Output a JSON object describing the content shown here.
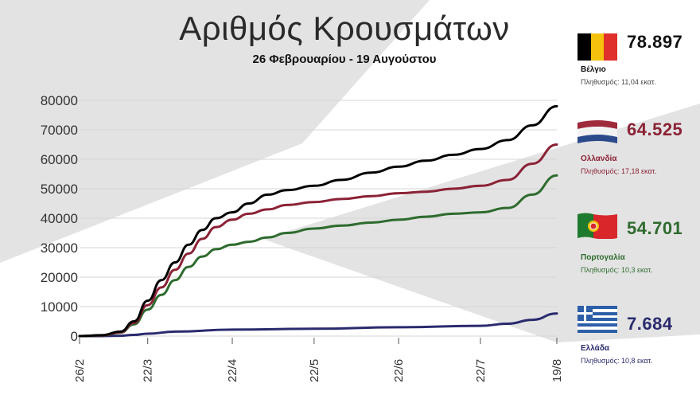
{
  "header": {
    "title": "Αριθμός Κρουσμάτων",
    "subtitle": "26 Φεβρουαρίου - 19 Αυγούστου"
  },
  "legend": [
    {
      "country": "Βέλγιο",
      "total": "78.897",
      "population": "Πληθυσμός: 11,04 εκατ.",
      "color": "#000000",
      "value_color": "#111111",
      "country_color": "#111111",
      "pop_color": "#444444",
      "icon": "belgium-flag-icon"
    },
    {
      "country": "Ολλανδία",
      "total": "64.525",
      "population": "Πληθυσμός: 17,18 εκατ.",
      "color": "#8b2235",
      "value_color": "#8b2235",
      "country_color": "#8b2235",
      "pop_color": "#8b2235",
      "icon": "netherlands-flag-icon"
    },
    {
      "country": "Πορτογαλία",
      "total": "54.701",
      "population": "Πληθυσμός: 10,3 εκατ.",
      "color": "#2e6b2e",
      "value_color": "#2e6b2e",
      "country_color": "#2e6b2e",
      "pop_color": "#2e6b2e",
      "icon": "portugal-flag-icon"
    },
    {
      "country": "Ελλάδα",
      "total": "7.684",
      "population": "Πληθυσμός: 10,8 εκατ.",
      "color": "#2a2a6e",
      "value_color": "#2a2a6e",
      "country_color": "#2a2a6e",
      "pop_color": "#2a2a6e",
      "icon": "greece-flag-icon"
    }
  ],
  "chart_data": {
    "type": "line",
    "title": "Αριθμός Κρουσμάτων",
    "subtitle": "26 Φεβρουαρίου - 19 Αυγούστου",
    "xlabel": "",
    "ylabel": "",
    "x_ticks": [
      "26/2",
      "22/3",
      "22/4",
      "22/5",
      "22/6",
      "22/7",
      "19/8"
    ],
    "y_ticks": [
      "80000",
      "70000",
      "60000",
      "50000",
      "40000",
      "30000",
      "20000",
      "10000",
      "0"
    ],
    "ylim": [
      0,
      80000
    ],
    "grid": true,
    "legend_placement": "right",
    "series": [
      {
        "name": "Βέλγιο",
        "color": "#000000",
        "x": [
          "2020-02-26",
          "2020-03-05",
          "2020-03-12",
          "2020-03-17",
          "2020-03-22",
          "2020-03-27",
          "2020-04-01",
          "2020-04-06",
          "2020-04-11",
          "2020-04-16",
          "2020-04-22",
          "2020-04-28",
          "2020-05-05",
          "2020-05-12",
          "2020-05-22",
          "2020-06-01",
          "2020-06-12",
          "2020-06-22",
          "2020-07-02",
          "2020-07-12",
          "2020-07-22",
          "2020-08-01",
          "2020-08-10",
          "2020-08-19"
        ],
        "y": [
          0,
          300,
          1500,
          5000,
          12000,
          19000,
          25000,
          31000,
          36000,
          40000,
          42000,
          45000,
          48000,
          49500,
          51000,
          53000,
          55500,
          57500,
          59500,
          61500,
          63500,
          66500,
          71500,
          78000
        ]
      },
      {
        "name": "Ολλανδία",
        "color": "#8b2235",
        "x": [
          "2020-02-26",
          "2020-03-05",
          "2020-03-12",
          "2020-03-17",
          "2020-03-22",
          "2020-03-27",
          "2020-04-01",
          "2020-04-06",
          "2020-04-11",
          "2020-04-16",
          "2020-04-22",
          "2020-04-28",
          "2020-05-05",
          "2020-05-12",
          "2020-05-22",
          "2020-06-01",
          "2020-06-12",
          "2020-06-22",
          "2020-07-02",
          "2020-07-12",
          "2020-07-22",
          "2020-08-01",
          "2020-08-10",
          "2020-08-19"
        ],
        "y": [
          0,
          250,
          1300,
          4500,
          10500,
          16500,
          22500,
          28000,
          33000,
          37000,
          39500,
          41500,
          43000,
          44500,
          45500,
          46500,
          47500,
          48500,
          49000,
          50000,
          51000,
          53000,
          58500,
          65000
        ]
      },
      {
        "name": "Πορτογαλία",
        "color": "#2e6b2e",
        "x": [
          "2020-02-26",
          "2020-03-05",
          "2020-03-12",
          "2020-03-17",
          "2020-03-22",
          "2020-03-27",
          "2020-04-01",
          "2020-04-06",
          "2020-04-11",
          "2020-04-16",
          "2020-04-22",
          "2020-04-28",
          "2020-05-05",
          "2020-05-12",
          "2020-05-22",
          "2020-06-01",
          "2020-06-12",
          "2020-06-22",
          "2020-07-02",
          "2020-07-12",
          "2020-07-22",
          "2020-08-01",
          "2020-08-10",
          "2020-08-19"
        ],
        "y": [
          0,
          200,
          1200,
          4000,
          9000,
          14000,
          19000,
          23500,
          27000,
          29500,
          31000,
          32000,
          33500,
          35000,
          36500,
          37500,
          38500,
          39500,
          40500,
          41500,
          42000,
          43500,
          48000,
          54500
        ]
      },
      {
        "name": "Ελλάδα",
        "color": "#2a2a6e",
        "x": [
          "2020-02-26",
          "2020-03-05",
          "2020-03-12",
          "2020-03-17",
          "2020-03-22",
          "2020-04-01",
          "2020-04-22",
          "2020-05-22",
          "2020-06-22",
          "2020-07-22",
          "2020-08-01",
          "2020-08-10",
          "2020-08-19"
        ],
        "y": [
          0,
          10,
          100,
          400,
          800,
          1500,
          2200,
          2500,
          3000,
          3500,
          4200,
          5500,
          7684
        ]
      }
    ]
  }
}
